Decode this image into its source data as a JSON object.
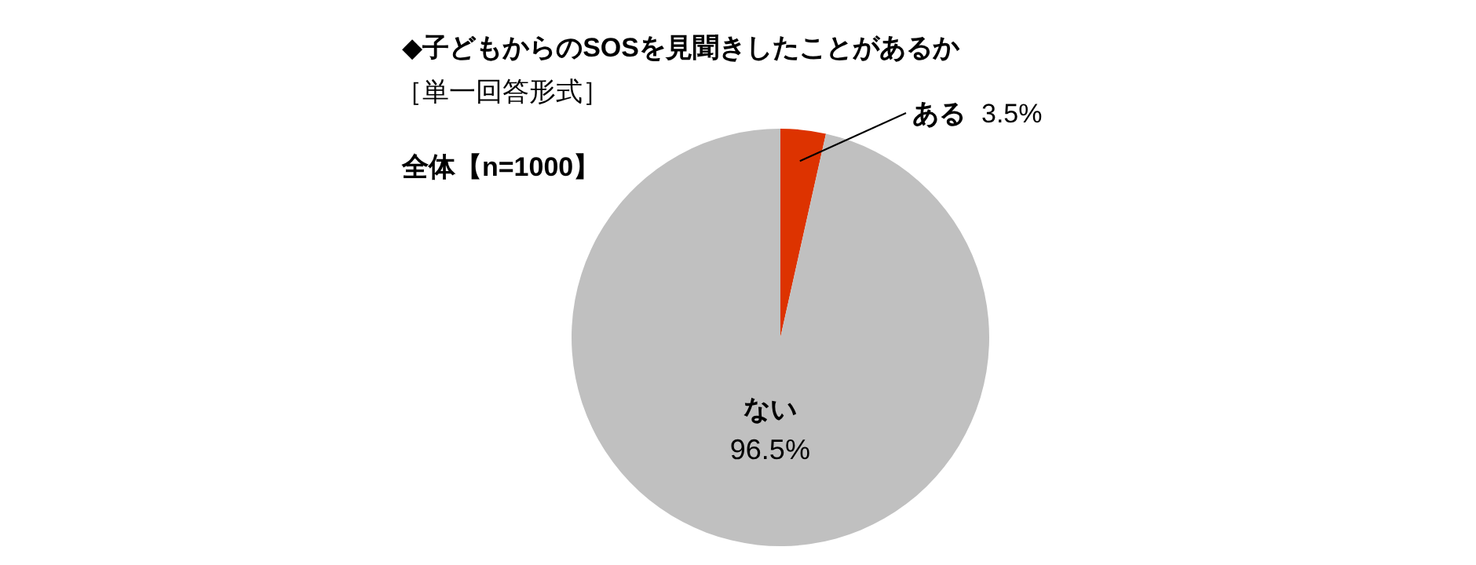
{
  "chart_data": {
    "type": "pie",
    "title": "◆子どもからのSOSを見聞きしたことがあるか",
    "subtitle": "［単一回答形式］",
    "annotations": [
      "全体【n=1000】"
    ],
    "categories": [
      "ある",
      "ない"
    ],
    "values": [
      3.5,
      96.5
    ],
    "colors": [
      "#dd3300",
      "#c0c0c0"
    ],
    "value_labels": [
      "3.5%",
      "96.5%"
    ]
  }
}
